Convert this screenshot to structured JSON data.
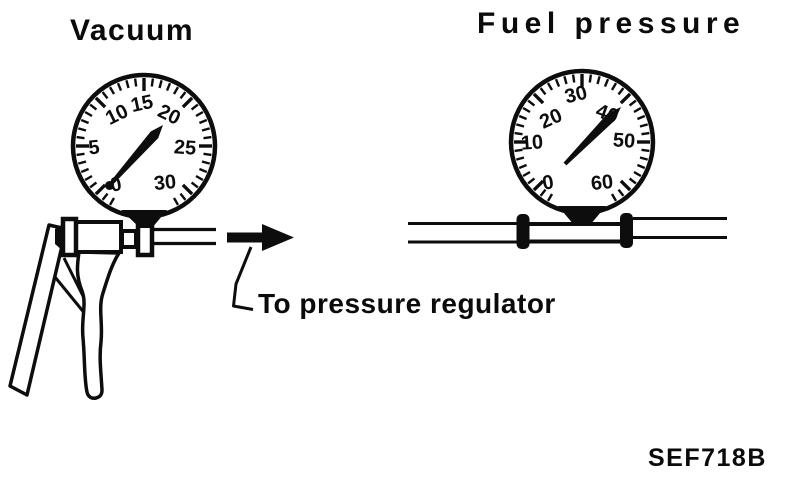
{
  "diagram": {
    "left_title": "Vacuum",
    "right_title": "Fuel pressure",
    "arrow_label": "To pressure regulator",
    "figure_code": "SEF718B"
  },
  "vacuum_gauge": {
    "dial_numbers": [
      "0",
      "5",
      "10",
      "15",
      "20",
      "25",
      "30"
    ],
    "needle_reading": "~18 (pointing between 15 and 20)"
  },
  "fuel_gauge": {
    "dial_numbers": [
      "0",
      "10",
      "20",
      "30",
      "40",
      "50",
      "60"
    ],
    "needle_reading": "~40"
  }
}
